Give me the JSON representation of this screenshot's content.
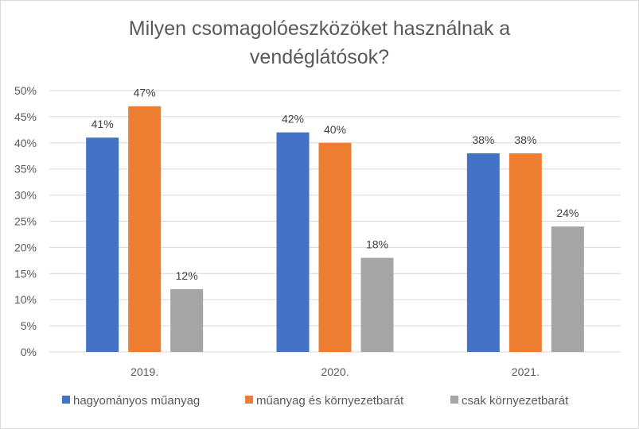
{
  "chart_data": {
    "type": "bar",
    "title": "Milyen csomagolóeszközöket  használnak a\nvendéglátósok?",
    "categories": [
      "2019.",
      "2020.",
      "2021."
    ],
    "series": [
      {
        "name": "hagyományos műanyag",
        "values": [
          41,
          42,
          38
        ],
        "labels": [
          "41%",
          "42%",
          "38%"
        ],
        "color": "#4472c4"
      },
      {
        "name": "műanyag és környezetbarát",
        "values": [
          47,
          40,
          38
        ],
        "labels": [
          "47%",
          "40%",
          "38%"
        ],
        "color": "#ed7d31"
      },
      {
        "name": "csak környezetbarát",
        "values": [
          12,
          18,
          24
        ],
        "labels": [
          "12%",
          "18%",
          "24%"
        ],
        "color": "#a5a5a5"
      }
    ],
    "y_ticks": [
      "0%",
      "5%",
      "10%",
      "15%",
      "20%",
      "25%",
      "30%",
      "35%",
      "40%",
      "45%",
      "50%"
    ],
    "ylim": [
      0,
      50
    ],
    "ystep": 5,
    "grid": true,
    "legend": "bottom",
    "gridline_color": "#d9d9d9"
  }
}
